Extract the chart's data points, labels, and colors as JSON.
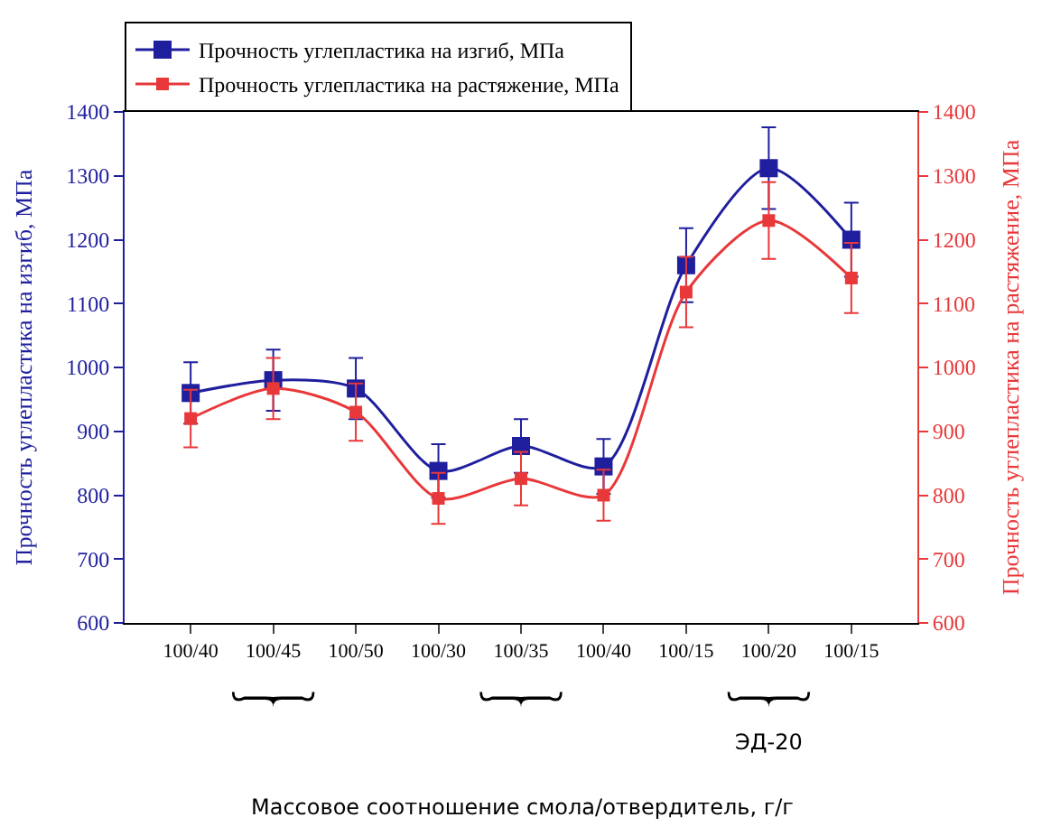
{
  "chart_data": {
    "type": "line",
    "categories": [
      "100/40",
      "100/45",
      "100/50",
      "100/30",
      "100/35",
      "100/40",
      "100/15",
      "100/20",
      "100/15"
    ],
    "series": [
      {
        "name": "Прочность углепластика на изгиб, МПа",
        "color": "#1f1f9e",
        "values": [
          960,
          980,
          967,
          838,
          877,
          845,
          1160,
          1312,
          1200
        ],
        "errors": [
          48,
          48,
          48,
          42,
          42,
          43,
          58,
          64,
          58
        ]
      },
      {
        "name": "Прочность углепластика на растяжение, МПа",
        "color": "#e8383a",
        "axis": "y2",
        "values": [
          920,
          967,
          930,
          795,
          826,
          800,
          1118,
          1230,
          1140
        ],
        "errors": [
          45,
          48,
          45,
          40,
          42,
          40,
          55,
          60,
          55
        ]
      }
    ],
    "ylabel": "Прочность углепластика на изгиб, МПа",
    "y2label": "Прочность углепластика на растяжение, МПа",
    "ylim": [
      600,
      1400
    ],
    "yticks": [
      600,
      700,
      800,
      900,
      1000,
      1100,
      1200,
      1300,
      1400
    ],
    "y2lim": [
      600,
      1400
    ],
    "y2ticks": [
      600,
      700,
      800,
      900,
      1000,
      1100,
      1200,
      1300,
      1400
    ],
    "annotations": [
      "ЭД-20",
      "Массовое соотношение смола/отвердитель, г/г"
    ],
    "marker": "square",
    "legend": "top left"
  }
}
